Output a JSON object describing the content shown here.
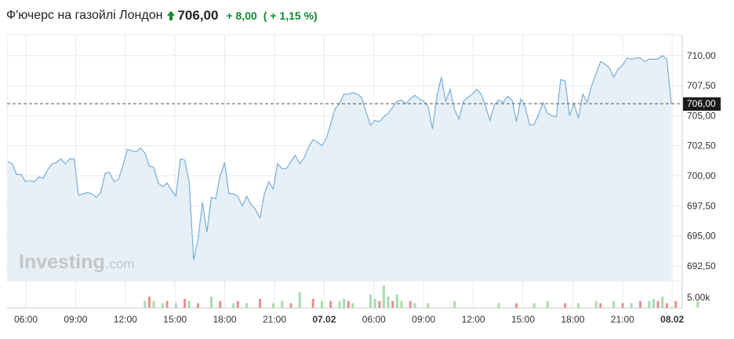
{
  "header": {
    "title": "Ф'ючерс на газойлі Лондон",
    "price": "706,00",
    "change": "+ 8,00",
    "change_pct": "( + 1,15 %)",
    "up_color": "#0e8a2e",
    "arrow_icon": "up-arrow-icon"
  },
  "watermark": {
    "brand": "Investing",
    "suffix": ".com"
  },
  "colors": {
    "line": "#7aaed6",
    "area": "#e7eff7",
    "volume_up": "#a8dbb0",
    "volume_down": "#e88f8f",
    "last_price_bg": "#1b1b1b",
    "grid": "#e9e9e9"
  },
  "chart_data": {
    "type": "area",
    "x_tick_labels": [
      "06:00",
      "09:00",
      "12:00",
      "15:00",
      "18:00",
      "21:00",
      "07.02",
      "06:00",
      "09:00",
      "12:00",
      "15:00",
      "18:00",
      "21:00",
      "08.02"
    ],
    "y_tick_labels": [
      "710,00",
      "707,50",
      "705,00",
      "702,50",
      "700,00",
      "697,50",
      "695,00",
      "692,50"
    ],
    "ylim": [
      691.25,
      711.75
    ],
    "last_price": 706.0,
    "last_price_label": "706,00",
    "volume_axis_label": "5.00k",
    "grid": true,
    "series": [
      {
        "values": [
          701.2,
          701.0,
          700.1,
          700.1,
          699.5,
          699.6,
          699.5,
          699.9,
          699.8,
          700.5,
          701.0,
          701.1,
          701.4,
          701.0,
          701.4,
          701.4,
          698.4,
          698.5,
          698.6,
          698.5,
          698.2,
          698.6,
          700.2,
          700.3,
          699.5,
          699.7,
          700.8,
          702.2,
          702.1,
          702.0,
          702.3,
          701.9,
          700.8,
          700.7,
          699.4,
          699.1,
          699.4,
          698.8,
          698.3,
          701.4,
          701.3,
          699.5,
          693.0,
          694.7,
          697.8,
          695.3,
          698.2,
          698.1,
          700.0,
          701.1,
          698.5,
          698.5,
          698.3,
          697.5,
          698.3,
          697.6,
          697.2,
          696.5,
          698.5,
          699.5,
          698.9,
          701.0,
          700.6,
          700.6,
          701.2,
          701.7,
          701.0,
          701.5,
          702.4,
          703.0,
          702.8,
          702.5,
          703.1,
          704.3,
          705.6,
          706.0,
          706.8,
          706.8,
          706.9,
          706.8,
          706.5,
          705.3,
          704.2,
          704.6,
          704.5,
          704.9,
          705.2,
          705.7,
          706.2,
          706.3,
          706.0,
          706.4,
          706.7,
          706.4,
          706.2,
          705.8,
          703.9,
          706.6,
          708.2,
          706.2,
          707.2,
          705.5,
          704.7,
          706.2,
          706.5,
          706.8,
          707.2,
          706.8,
          705.8,
          704.6,
          705.9,
          706.3,
          706.1,
          706.6,
          706.3,
          704.5,
          706.4,
          705.7,
          704.2,
          704.3,
          705.1,
          706.1,
          705.2,
          705.0,
          704.9,
          708.0,
          707.9,
          705.0,
          706.0,
          704.8,
          706.8,
          706.1,
          707.5,
          708.5,
          709.5,
          709.3,
          709.0,
          708.2,
          708.9,
          709.2,
          709.8,
          709.7,
          709.8,
          709.8,
          709.5,
          709.7,
          709.7,
          709.7,
          710.0,
          709.7,
          706.0
        ]
      }
    ],
    "volume": [
      {
        "i": 31,
        "v": 0.3,
        "up": true
      },
      {
        "i": 32,
        "v": 0.5,
        "up": false
      },
      {
        "i": 33,
        "v": 0.3,
        "up": true
      },
      {
        "i": 35,
        "v": 0.2,
        "up": true
      },
      {
        "i": 36,
        "v": 0.3,
        "up": false
      },
      {
        "i": 38,
        "v": 0.2,
        "up": true
      },
      {
        "i": 40,
        "v": 0.4,
        "up": false
      },
      {
        "i": 41,
        "v": 0.3,
        "up": true
      },
      {
        "i": 43,
        "v": 0.2,
        "up": false
      },
      {
        "i": 46,
        "v": 0.5,
        "up": true
      },
      {
        "i": 48,
        "v": 0.3,
        "up": false
      },
      {
        "i": 51,
        "v": 0.2,
        "up": true
      },
      {
        "i": 52,
        "v": 0.3,
        "up": false
      },
      {
        "i": 54,
        "v": 0.2,
        "up": true
      },
      {
        "i": 57,
        "v": 0.4,
        "up": false
      },
      {
        "i": 60,
        "v": 0.2,
        "up": true
      },
      {
        "i": 62,
        "v": 0.3,
        "up": true
      },
      {
        "i": 64,
        "v": 0.2,
        "up": false
      },
      {
        "i": 66,
        "v": 0.7,
        "up": true
      },
      {
        "i": 69,
        "v": 0.4,
        "up": false
      },
      {
        "i": 71,
        "v": 0.3,
        "up": true
      },
      {
        "i": 73,
        "v": 0.3,
        "up": false
      },
      {
        "i": 75,
        "v": 0.3,
        "up": true
      },
      {
        "i": 76,
        "v": 0.4,
        "up": true
      },
      {
        "i": 77,
        "v": 0.3,
        "up": false
      },
      {
        "i": 78,
        "v": 0.2,
        "up": true
      },
      {
        "i": 82,
        "v": 0.6,
        "up": true
      },
      {
        "i": 83,
        "v": 0.4,
        "up": true
      },
      {
        "i": 84,
        "v": 0.3,
        "up": false
      },
      {
        "i": 85,
        "v": 1.0,
        "up": true
      },
      {
        "i": 86,
        "v": 0.5,
        "up": true
      },
      {
        "i": 87,
        "v": 0.3,
        "up": false
      },
      {
        "i": 88,
        "v": 0.6,
        "up": true
      },
      {
        "i": 89,
        "v": 0.3,
        "up": true
      },
      {
        "i": 91,
        "v": 0.3,
        "up": false
      },
      {
        "i": 92,
        "v": 0.2,
        "up": true
      },
      {
        "i": 95,
        "v": 0.2,
        "up": true
      },
      {
        "i": 101,
        "v": 0.3,
        "up": true
      },
      {
        "i": 111,
        "v": 0.2,
        "up": true
      },
      {
        "i": 115,
        "v": 0.2,
        "up": false
      },
      {
        "i": 119,
        "v": 0.2,
        "up": true
      },
      {
        "i": 122,
        "v": 0.3,
        "up": true
      },
      {
        "i": 126,
        "v": 0.2,
        "up": false
      },
      {
        "i": 129,
        "v": 0.2,
        "up": true
      },
      {
        "i": 133,
        "v": 0.3,
        "up": true
      },
      {
        "i": 134,
        "v": 0.2,
        "up": false
      },
      {
        "i": 137,
        "v": 0.3,
        "up": true
      },
      {
        "i": 139,
        "v": 0.2,
        "up": false
      },
      {
        "i": 141,
        "v": 0.2,
        "up": true
      },
      {
        "i": 143,
        "v": 0.3,
        "up": false
      },
      {
        "i": 145,
        "v": 0.3,
        "up": true
      },
      {
        "i": 146,
        "v": 0.4,
        "up": true
      },
      {
        "i": 147,
        "v": 0.3,
        "up": false
      },
      {
        "i": 148,
        "v": 0.5,
        "up": true
      },
      {
        "i": 149,
        "v": 0.2,
        "up": false
      },
      {
        "i": 151,
        "v": 0.3,
        "up": false
      },
      {
        "i": 156,
        "v": 0.3,
        "up": true
      }
    ]
  }
}
